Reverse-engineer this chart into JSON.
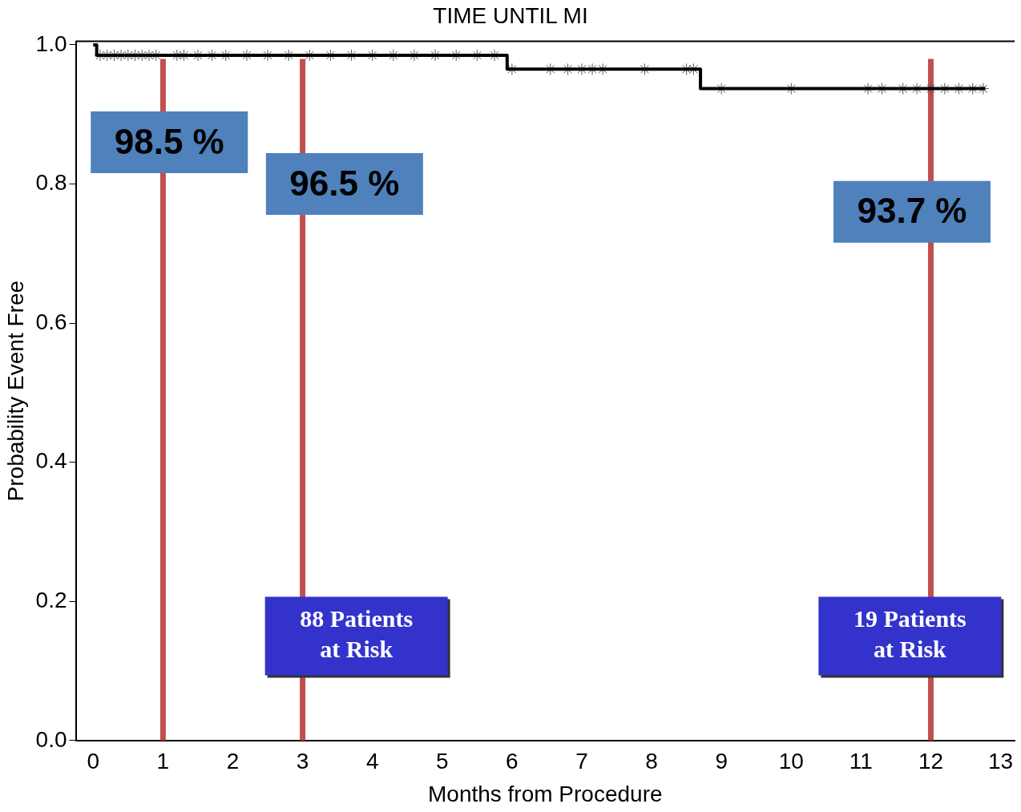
{
  "chart_data": {
    "type": "step",
    "title": "TIME UNTIL MI",
    "xlabel": "Months from Procedure",
    "ylabel": "Probability Event Free",
    "xlim": [
      -0.25,
      13.2
    ],
    "xticks": [
      0,
      1,
      2,
      3,
      4,
      5,
      6,
      7,
      8,
      9,
      10,
      11,
      12,
      13
    ],
    "ylim": [
      0,
      1.005
    ],
    "yticks": [
      {
        "value": 0,
        "label": "0.0"
      },
      0.2,
      0.4,
      0.6,
      0.8,
      {
        "value": 1,
        "label": "1.0"
      }
    ],
    "grid": false,
    "legend": false,
    "series": [
      {
        "color": "#000000",
        "marker": "none",
        "x": [
          0,
          0.05,
          5.93,
          8.7,
          12.78
        ],
        "values": [
          1,
          0.985,
          0.965,
          0.937,
          0.937
        ]
      },
      {
        "type": "scatter",
        "color": "#555555",
        "marker": "cross",
        "x": [
          0.1,
          0.2,
          0.3,
          0.4,
          0.5,
          0.6,
          0.7,
          0.8,
          0.9,
          1.2,
          1.3,
          1.5,
          1.7,
          1.9,
          2.2,
          2.5,
          2.8,
          3.1,
          3.4,
          3.7,
          4.0,
          4.3,
          4.6,
          4.9,
          5.2,
          5.5,
          5.75,
          6.0,
          6.55,
          6.8,
          7.0,
          7.15,
          7.3,
          7.9,
          8.5,
          8.6,
          9.0,
          10.0,
          11.1,
          11.3,
          11.6,
          11.8,
          12.0,
          12.2,
          12.4,
          12.6,
          12.75
        ],
        "values": [
          0.985,
          0.985,
          0.985,
          0.985,
          0.985,
          0.985,
          0.985,
          0.985,
          0.985,
          0.985,
          0.985,
          0.985,
          0.985,
          0.985,
          0.985,
          0.985,
          0.985,
          0.985,
          0.985,
          0.985,
          0.985,
          0.985,
          0.985,
          0.985,
          0.985,
          0.985,
          0.985,
          0.965,
          0.965,
          0.965,
          0.965,
          0.965,
          0.965,
          0.965,
          0.965,
          0.965,
          0.937,
          0.937,
          0.937,
          0.937,
          0.937,
          0.937,
          0.937,
          0.937,
          0.937,
          0.937,
          0.937
        ]
      }
    ],
    "ref_lines": [
      {
        "axis": "x",
        "value": 1,
        "color": "#c0504d"
      },
      {
        "axis": "x",
        "value": 3,
        "color": "#c0504d"
      },
      {
        "axis": "x",
        "value": 12,
        "color": "#c0504d"
      }
    ],
    "annotations": [
      "98.5 %",
      "96.5 %",
      "93.7 %",
      "88 Patients at Risk",
      "19 Patients at Risk"
    ]
  }
}
